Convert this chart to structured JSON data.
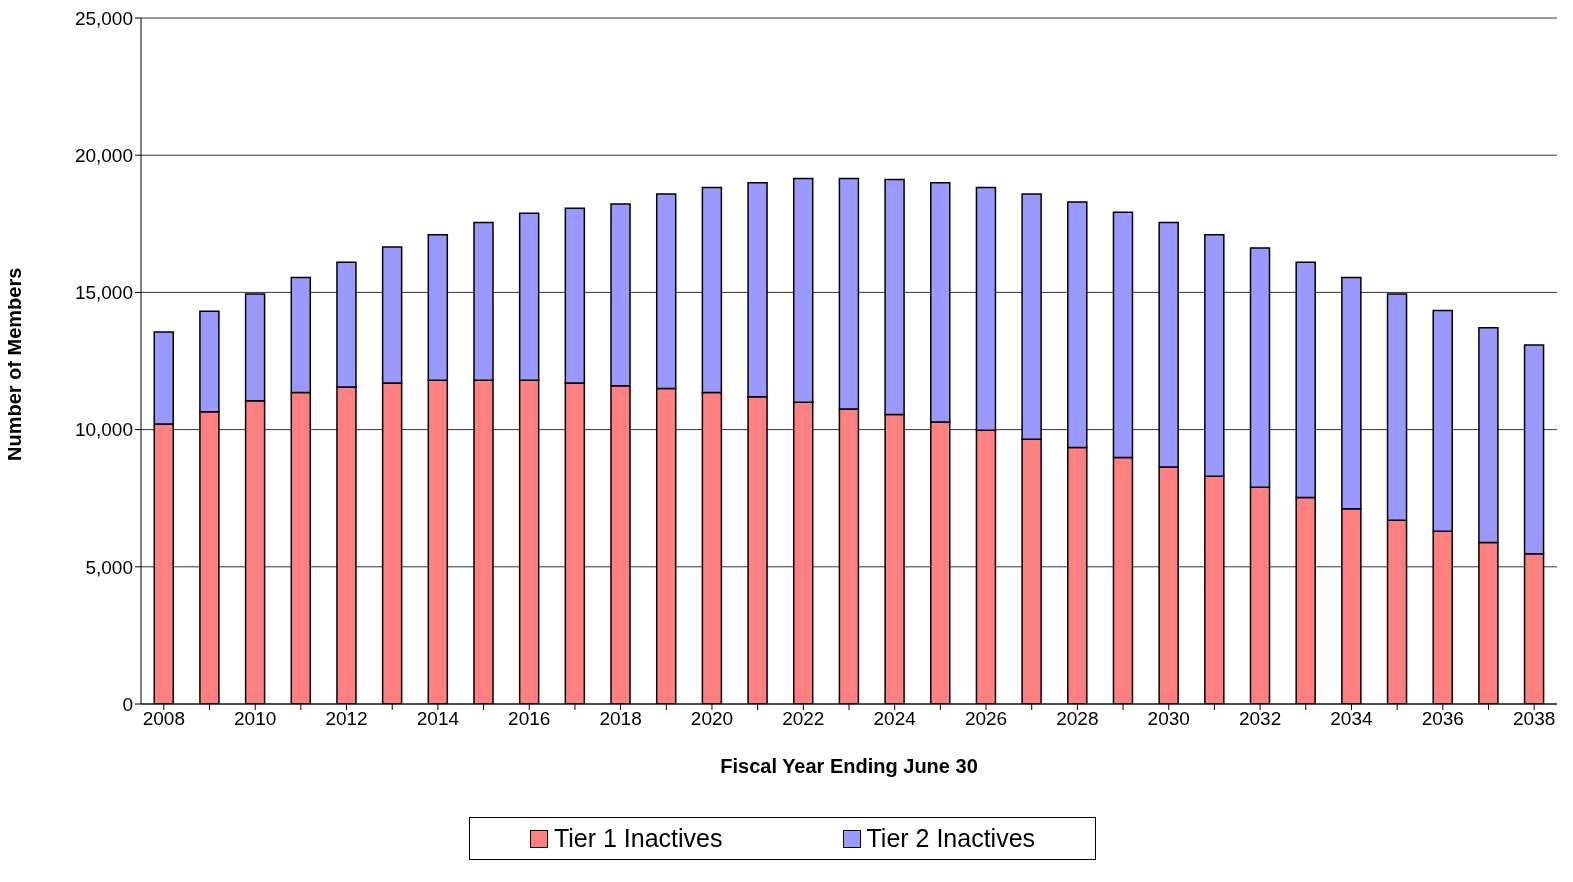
{
  "chart_data": {
    "type": "bar",
    "stacked": true,
    "xlabel": "Fiscal Year Ending June 30",
    "ylabel": "Number of Members",
    "categories": [
      "2008",
      null,
      "2010",
      null,
      "2012",
      null,
      "2014",
      null,
      "2016",
      null,
      "2018",
      null,
      "2020",
      null,
      "2022",
      null,
      "2024",
      null,
      "2026",
      null,
      "2028",
      null,
      "2030",
      null,
      "2032",
      null,
      "2034",
      null,
      "2036",
      null,
      "2038"
    ],
    "series": [
      {
        "name": "Tier 1 Inactives",
        "color": "#ff8080",
        "values": [
          10200,
          10650,
          11050,
          11350,
          11550,
          11700,
          11800,
          11800,
          11800,
          11700,
          11600,
          11500,
          11350,
          11200,
          11000,
          10750,
          10550,
          10280,
          9980,
          9650,
          9350,
          8980,
          8640,
          8300,
          7900,
          7530,
          7120,
          6700,
          6300,
          5890,
          5480
        ]
      },
      {
        "name": "Tier 2 Inactives",
        "color": "#9999ff",
        "values": [
          3360,
          3660,
          3890,
          4190,
          4550,
          4950,
          5300,
          5750,
          6080,
          6370,
          6620,
          7090,
          7470,
          7800,
          8150,
          8400,
          8560,
          8720,
          8840,
          8940,
          8940,
          8940,
          8910,
          8800,
          8720,
          8570,
          8420,
          8240,
          8040,
          7820,
          7600
        ]
      }
    ],
    "ylim": [
      0,
      25000
    ],
    "yticks": [
      0,
      {
        "value": 5000,
        "label": "5,000"
      },
      {
        "value": 10000,
        "label": "10,000"
      },
      {
        "value": 15000,
        "label": "15,000"
      },
      {
        "value": 20000,
        "label": "20,000"
      },
      {
        "value": 25000,
        "label": "25,000"
      }
    ],
    "grid": "y",
    "legend": "bottom"
  }
}
